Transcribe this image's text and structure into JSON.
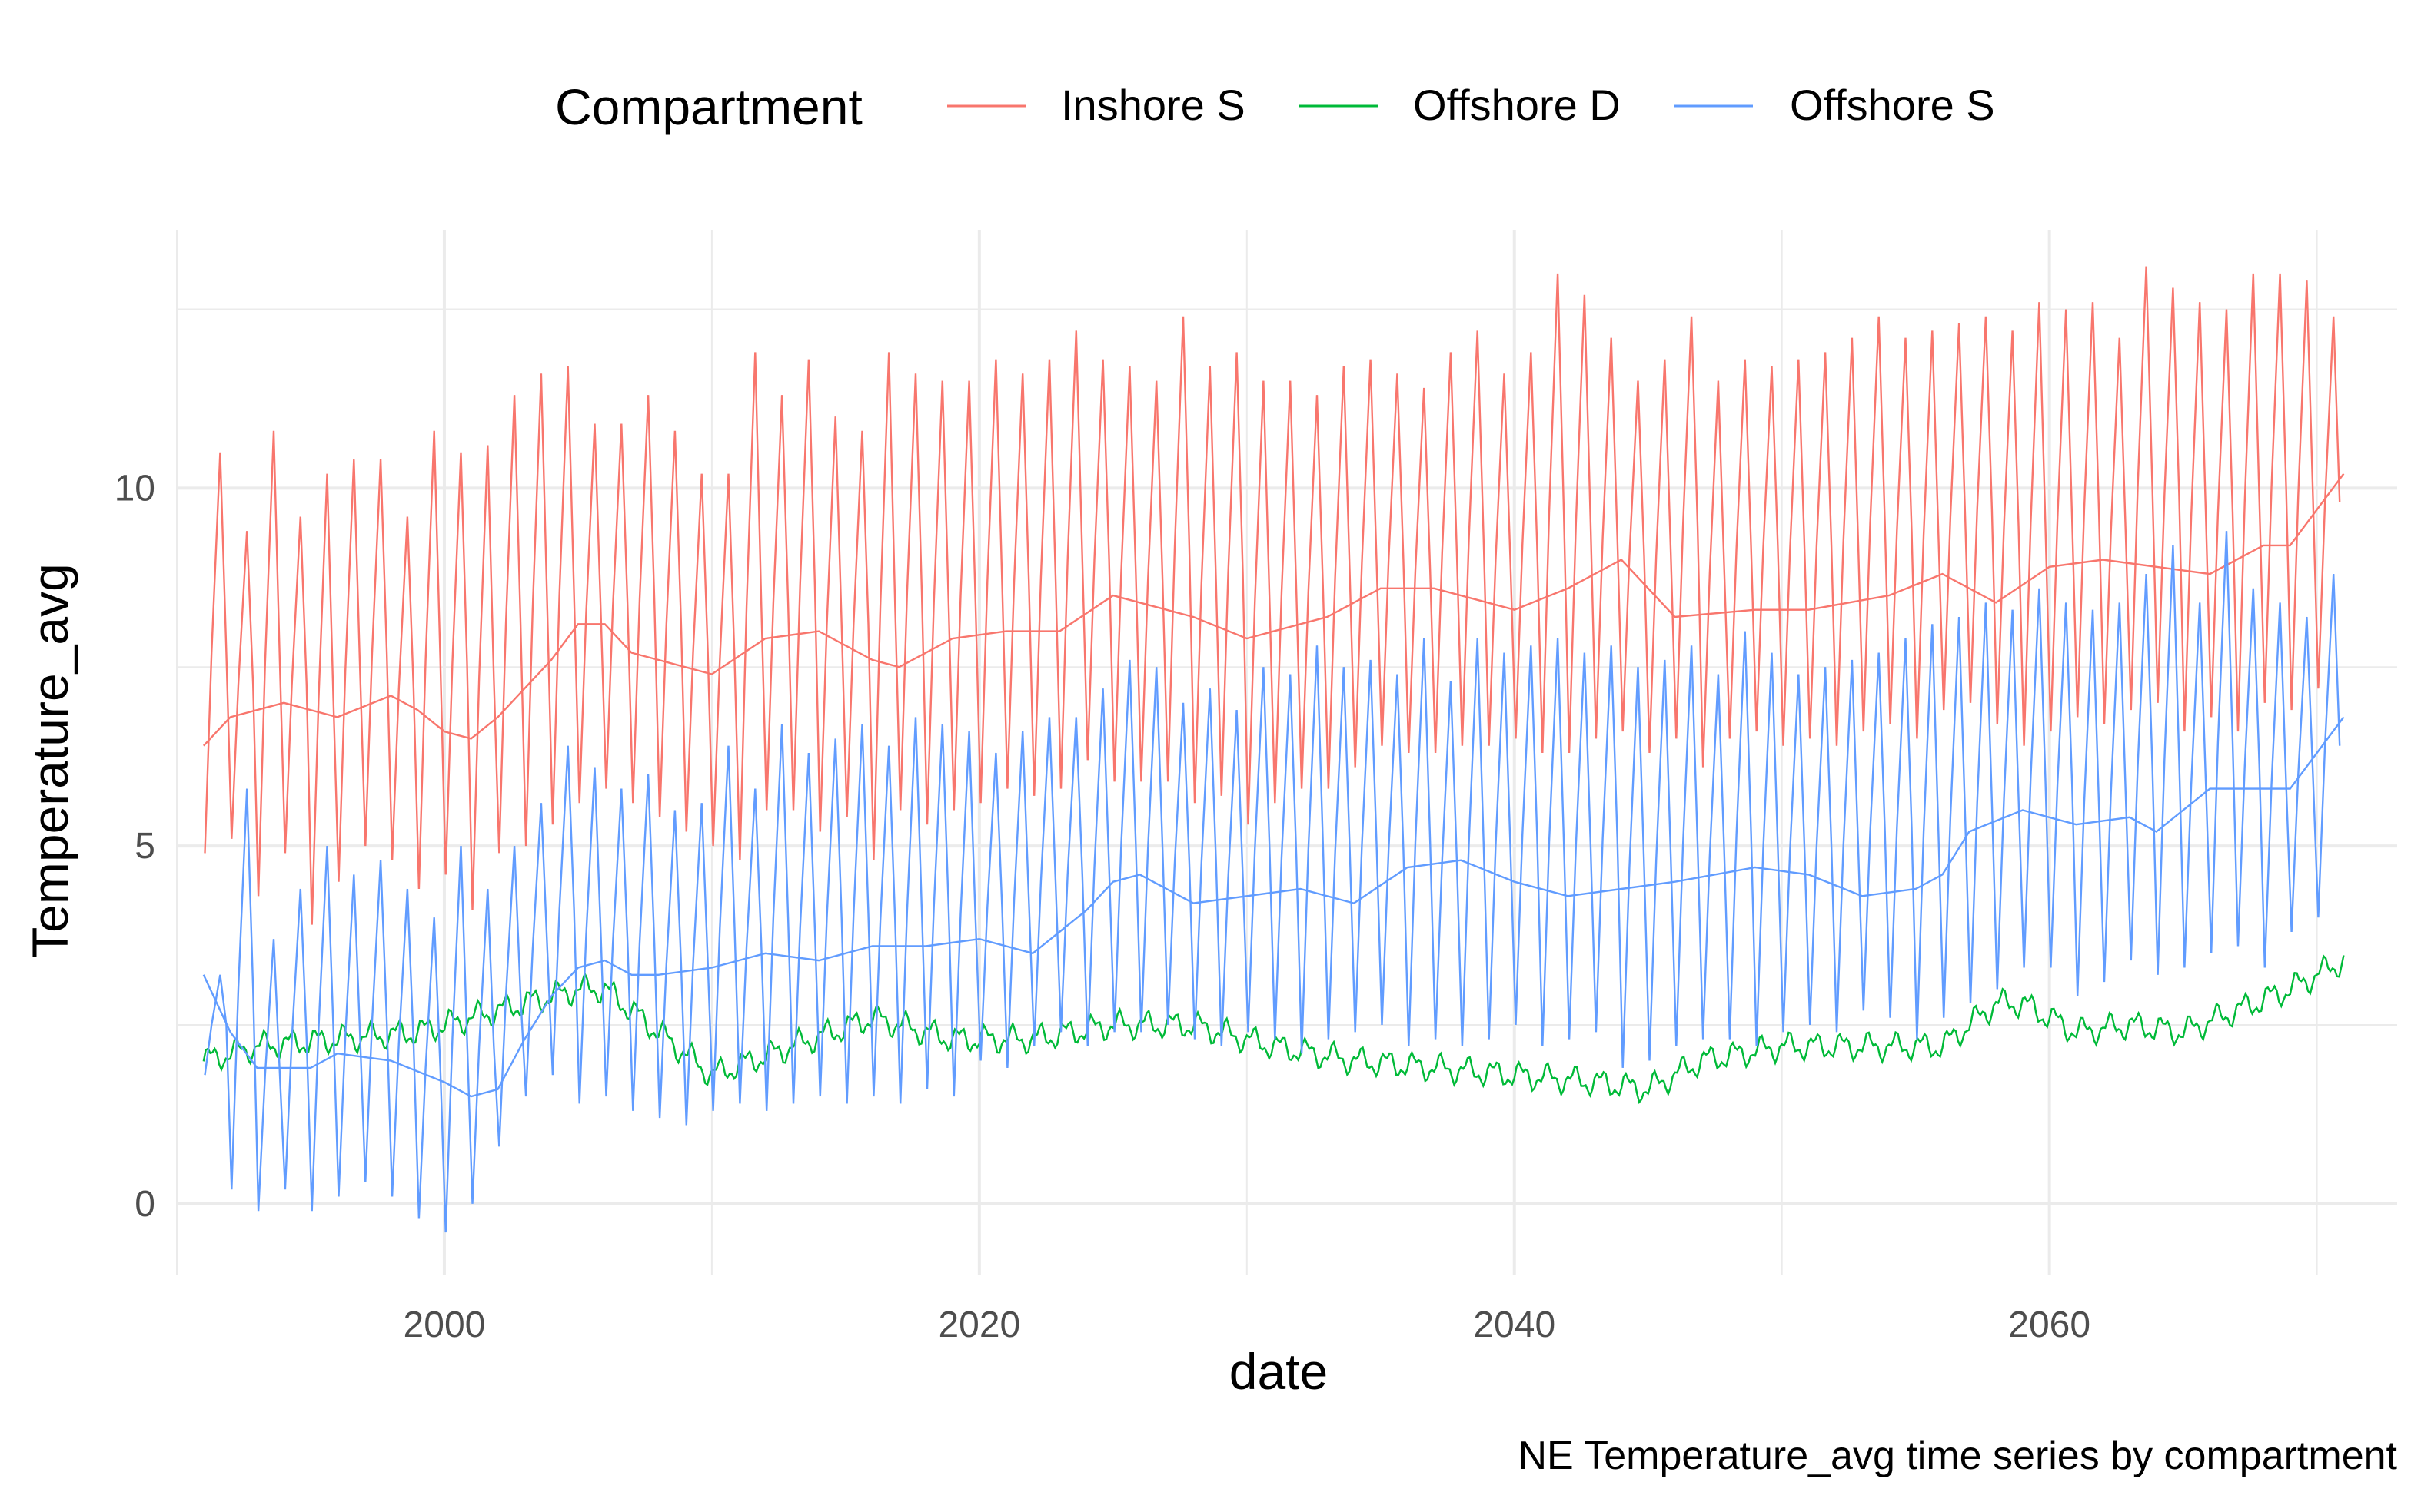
{
  "chart_data": {
    "type": "line",
    "xlabel": "date",
    "ylabel": "Temperature_avg",
    "caption": "NE Temperature_avg time series by compartment",
    "legend_title": "Compartment",
    "legend_position": "top",
    "grid": true,
    "xlim": [
      1990,
      2073
    ],
    "ylim": [
      -1.0,
      13.6
    ],
    "x_ticks": [
      2000,
      2020,
      2040,
      2060
    ],
    "y_ticks": [
      0,
      5,
      10
    ],
    "series": [
      {
        "name": "Inshore S",
        "color": "#F8766D",
        "seasonal": {
          "start_year": 1991,
          "end_year": 2070,
          "peaks": [
            10.5,
            9.4,
            10.8,
            9.6,
            10.2,
            10.4,
            10.4,
            9.6,
            10.8,
            10.5,
            10.6,
            11.3,
            11.6,
            11.7,
            10.9,
            10.9,
            11.3,
            10.8,
            10.2,
            10.2,
            11.9,
            11.3,
            11.8,
            11.0,
            10.8,
            11.9,
            11.6,
            11.5,
            11.5,
            11.8,
            11.6,
            11.8,
            12.2,
            11.8,
            11.7,
            11.5,
            12.4,
            11.7,
            11.9,
            11.5,
            11.5,
            11.3,
            11.7,
            11.8,
            11.6,
            11.4,
            11.9,
            12.2,
            11.6,
            11.9,
            13.0,
            12.7,
            12.1,
            11.5,
            11.8,
            12.4,
            11.5,
            11.8,
            11.7,
            11.8,
            11.9,
            12.1,
            12.4,
            12.1,
            12.2,
            12.3,
            12.4,
            12.2,
            12.6,
            12.5,
            12.6,
            12.1,
            13.1,
            12.8,
            12.6,
            12.5,
            13.0,
            13.0,
            12.9,
            12.4
          ],
          "troughs": [
            4.9,
            5.1,
            4.3,
            4.9,
            3.9,
            4.5,
            5.0,
            4.8,
            4.4,
            4.6,
            4.1,
            4.9,
            5.0,
            5.3,
            5.6,
            5.8,
            5.6,
            5.4,
            5.2,
            5.0,
            4.8,
            5.5,
            5.5,
            5.2,
            5.4,
            4.8,
            5.5,
            5.3,
            5.5,
            5.6,
            5.8,
            5.7,
            5.8,
            6.2,
            5.9,
            5.9,
            5.9,
            5.6,
            5.7,
            5.3,
            5.6,
            5.8,
            5.8,
            6.1,
            6.4,
            6.3,
            6.3,
            6.4,
            6.4,
            6.5,
            6.3,
            6.3,
            6.5,
            6.6,
            6.3,
            6.5,
            6.1,
            6.5,
            6.6,
            6.4,
            6.5,
            6.4,
            6.6,
            6.7,
            6.5,
            6.9,
            7.0,
            6.7,
            6.4,
            6.6,
            6.8,
            6.7,
            6.9,
            7.0,
            6.6,
            6.8,
            6.6,
            7.0,
            6.9,
            7.2
          ]
        },
        "trend": {
          "x": [
            1991,
            1992,
            1994,
            1996,
            1998,
            1999,
            2000,
            2001,
            2002,
            2004,
            2005,
            2006,
            2007,
            2008,
            2010,
            2012,
            2014,
            2016,
            2017,
            2019,
            2021,
            2023,
            2025,
            2028,
            2030,
            2033,
            2035,
            2037,
            2040,
            2042,
            2044,
            2046,
            2049,
            2051,
            2054,
            2056,
            2058,
            2060,
            2062,
            2064,
            2066,
            2068,
            2069,
            2071
          ],
          "y": [
            6.4,
            6.8,
            7.0,
            6.8,
            7.1,
            6.9,
            6.6,
            6.5,
            6.8,
            7.6,
            8.1,
            8.1,
            7.7,
            7.6,
            7.4,
            7.9,
            8.0,
            7.6,
            7.5,
            7.9,
            8.0,
            8.0,
            8.5,
            8.2,
            7.9,
            8.2,
            8.6,
            8.6,
            8.3,
            8.6,
            9.0,
            8.2,
            8.3,
            8.3,
            8.5,
            8.8,
            8.4,
            8.9,
            9.0,
            8.9,
            8.8,
            9.2,
            9.2,
            10.2
          ]
        }
      },
      {
        "name": "Offshore D",
        "color": "#00BA38",
        "noise_amplitude": 0.18,
        "trend": {
          "x": [
            1991,
            1993,
            1996,
            1999,
            2002,
            2005,
            2006,
            2008,
            2010,
            2013,
            2016,
            2019,
            2022,
            2025,
            2028,
            2031,
            2034,
            2037,
            2040,
            2043,
            2045,
            2047,
            2050,
            2053,
            2056,
            2058,
            2059,
            2061,
            2063,
            2065,
            2067,
            2069,
            2071
          ],
          "y": [
            2.0,
            2.2,
            2.3,
            2.4,
            2.7,
            3.0,
            3.0,
            2.4,
            1.8,
            2.2,
            2.6,
            2.3,
            2.3,
            2.5,
            2.5,
            2.2,
            2.0,
            1.9,
            1.8,
            1.7,
            1.6,
            2.0,
            2.2,
            2.2,
            2.2,
            2.8,
            2.8,
            2.4,
            2.5,
            2.4,
            2.7,
            3.0,
            3.4
          ]
        }
      },
      {
        "name": "Offshore S",
        "color": "#619CFF",
        "seasonal": {
          "start_year": 1991,
          "end_year": 2070,
          "peaks": [
            3.2,
            5.8,
            3.7,
            4.4,
            5.0,
            4.6,
            4.8,
            4.4,
            4.0,
            5.0,
            4.4,
            5.0,
            5.6,
            6.4,
            6.1,
            5.8,
            6.0,
            5.5,
            5.6,
            6.4,
            5.8,
            6.7,
            6.3,
            6.5,
            6.7,
            6.4,
            6.8,
            6.7,
            6.6,
            6.3,
            6.6,
            6.8,
            6.8,
            7.2,
            7.6,
            7.5,
            7.0,
            7.2,
            6.9,
            7.5,
            7.4,
            7.8,
            7.5,
            7.6,
            7.4,
            7.9,
            7.3,
            7.9,
            7.7,
            7.8,
            7.9,
            7.7,
            7.8,
            7.5,
            7.6,
            7.8,
            7.4,
            8.0,
            7.7,
            7.4,
            7.5,
            7.6,
            7.7,
            7.9,
            8.1,
            8.2,
            8.4,
            8.3,
            8.6,
            8.4,
            8.3,
            8.4,
            8.8,
            9.2,
            8.4,
            9.4,
            8.6,
            8.4,
            8.2,
            8.8
          ],
          "troughs": [
            1.8,
            0.2,
            -0.1,
            0.2,
            -0.1,
            0.1,
            0.3,
            0.1,
            -0.2,
            -0.4,
            0.0,
            0.8,
            1.5,
            1.8,
            1.4,
            1.5,
            1.3,
            1.2,
            1.1,
            1.3,
            1.4,
            1.3,
            1.4,
            1.5,
            1.4,
            1.5,
            1.4,
            1.6,
            1.5,
            2.0,
            1.9,
            2.2,
            2.4,
            2.2,
            2.4,
            2.4,
            2.5,
            2.3,
            2.2,
            2.4,
            2.3,
            2.1,
            2.3,
            2.4,
            2.5,
            2.2,
            2.3,
            2.2,
            2.3,
            2.5,
            2.2,
            2.3,
            2.4,
            1.9,
            2.0,
            2.2,
            2.3,
            2.3,
            2.2,
            2.4,
            2.5,
            2.4,
            2.7,
            2.6,
            2.3,
            2.6,
            2.8,
            3.0,
            3.3,
            3.3,
            2.9,
            3.1,
            3.4,
            3.2,
            3.3,
            3.5,
            3.6,
            3.3,
            3.8,
            4.0
          ]
        },
        "trend": {
          "x": [
            1991,
            1992,
            1993,
            1995,
            1996,
            1998,
            2000,
            2001,
            2002,
            2003,
            2004,
            2005,
            2006,
            2007,
            2008,
            2010,
            2012,
            2014,
            2016,
            2018,
            2020,
            2022,
            2024,
            2025,
            2026,
            2028,
            2030,
            2032,
            2034,
            2036,
            2038,
            2040,
            2042,
            2044,
            2046,
            2049,
            2051,
            2053,
            2055,
            2056,
            2057,
            2059,
            2061,
            2063,
            2064,
            2066,
            2068,
            2069,
            2071
          ],
          "y": [
            3.2,
            2.4,
            1.9,
            1.9,
            2.1,
            2.0,
            1.7,
            1.5,
            1.6,
            2.3,
            2.9,
            3.3,
            3.4,
            3.2,
            3.2,
            3.3,
            3.5,
            3.4,
            3.6,
            3.6,
            3.7,
            3.5,
            4.1,
            4.5,
            4.6,
            4.2,
            4.3,
            4.4,
            4.2,
            4.7,
            4.8,
            4.5,
            4.3,
            4.4,
            4.5,
            4.7,
            4.6,
            4.3,
            4.4,
            4.6,
            5.2,
            5.5,
            5.3,
            5.4,
            5.2,
            5.8,
            5.8,
            5.8,
            6.8
          ]
        }
      }
    ]
  }
}
